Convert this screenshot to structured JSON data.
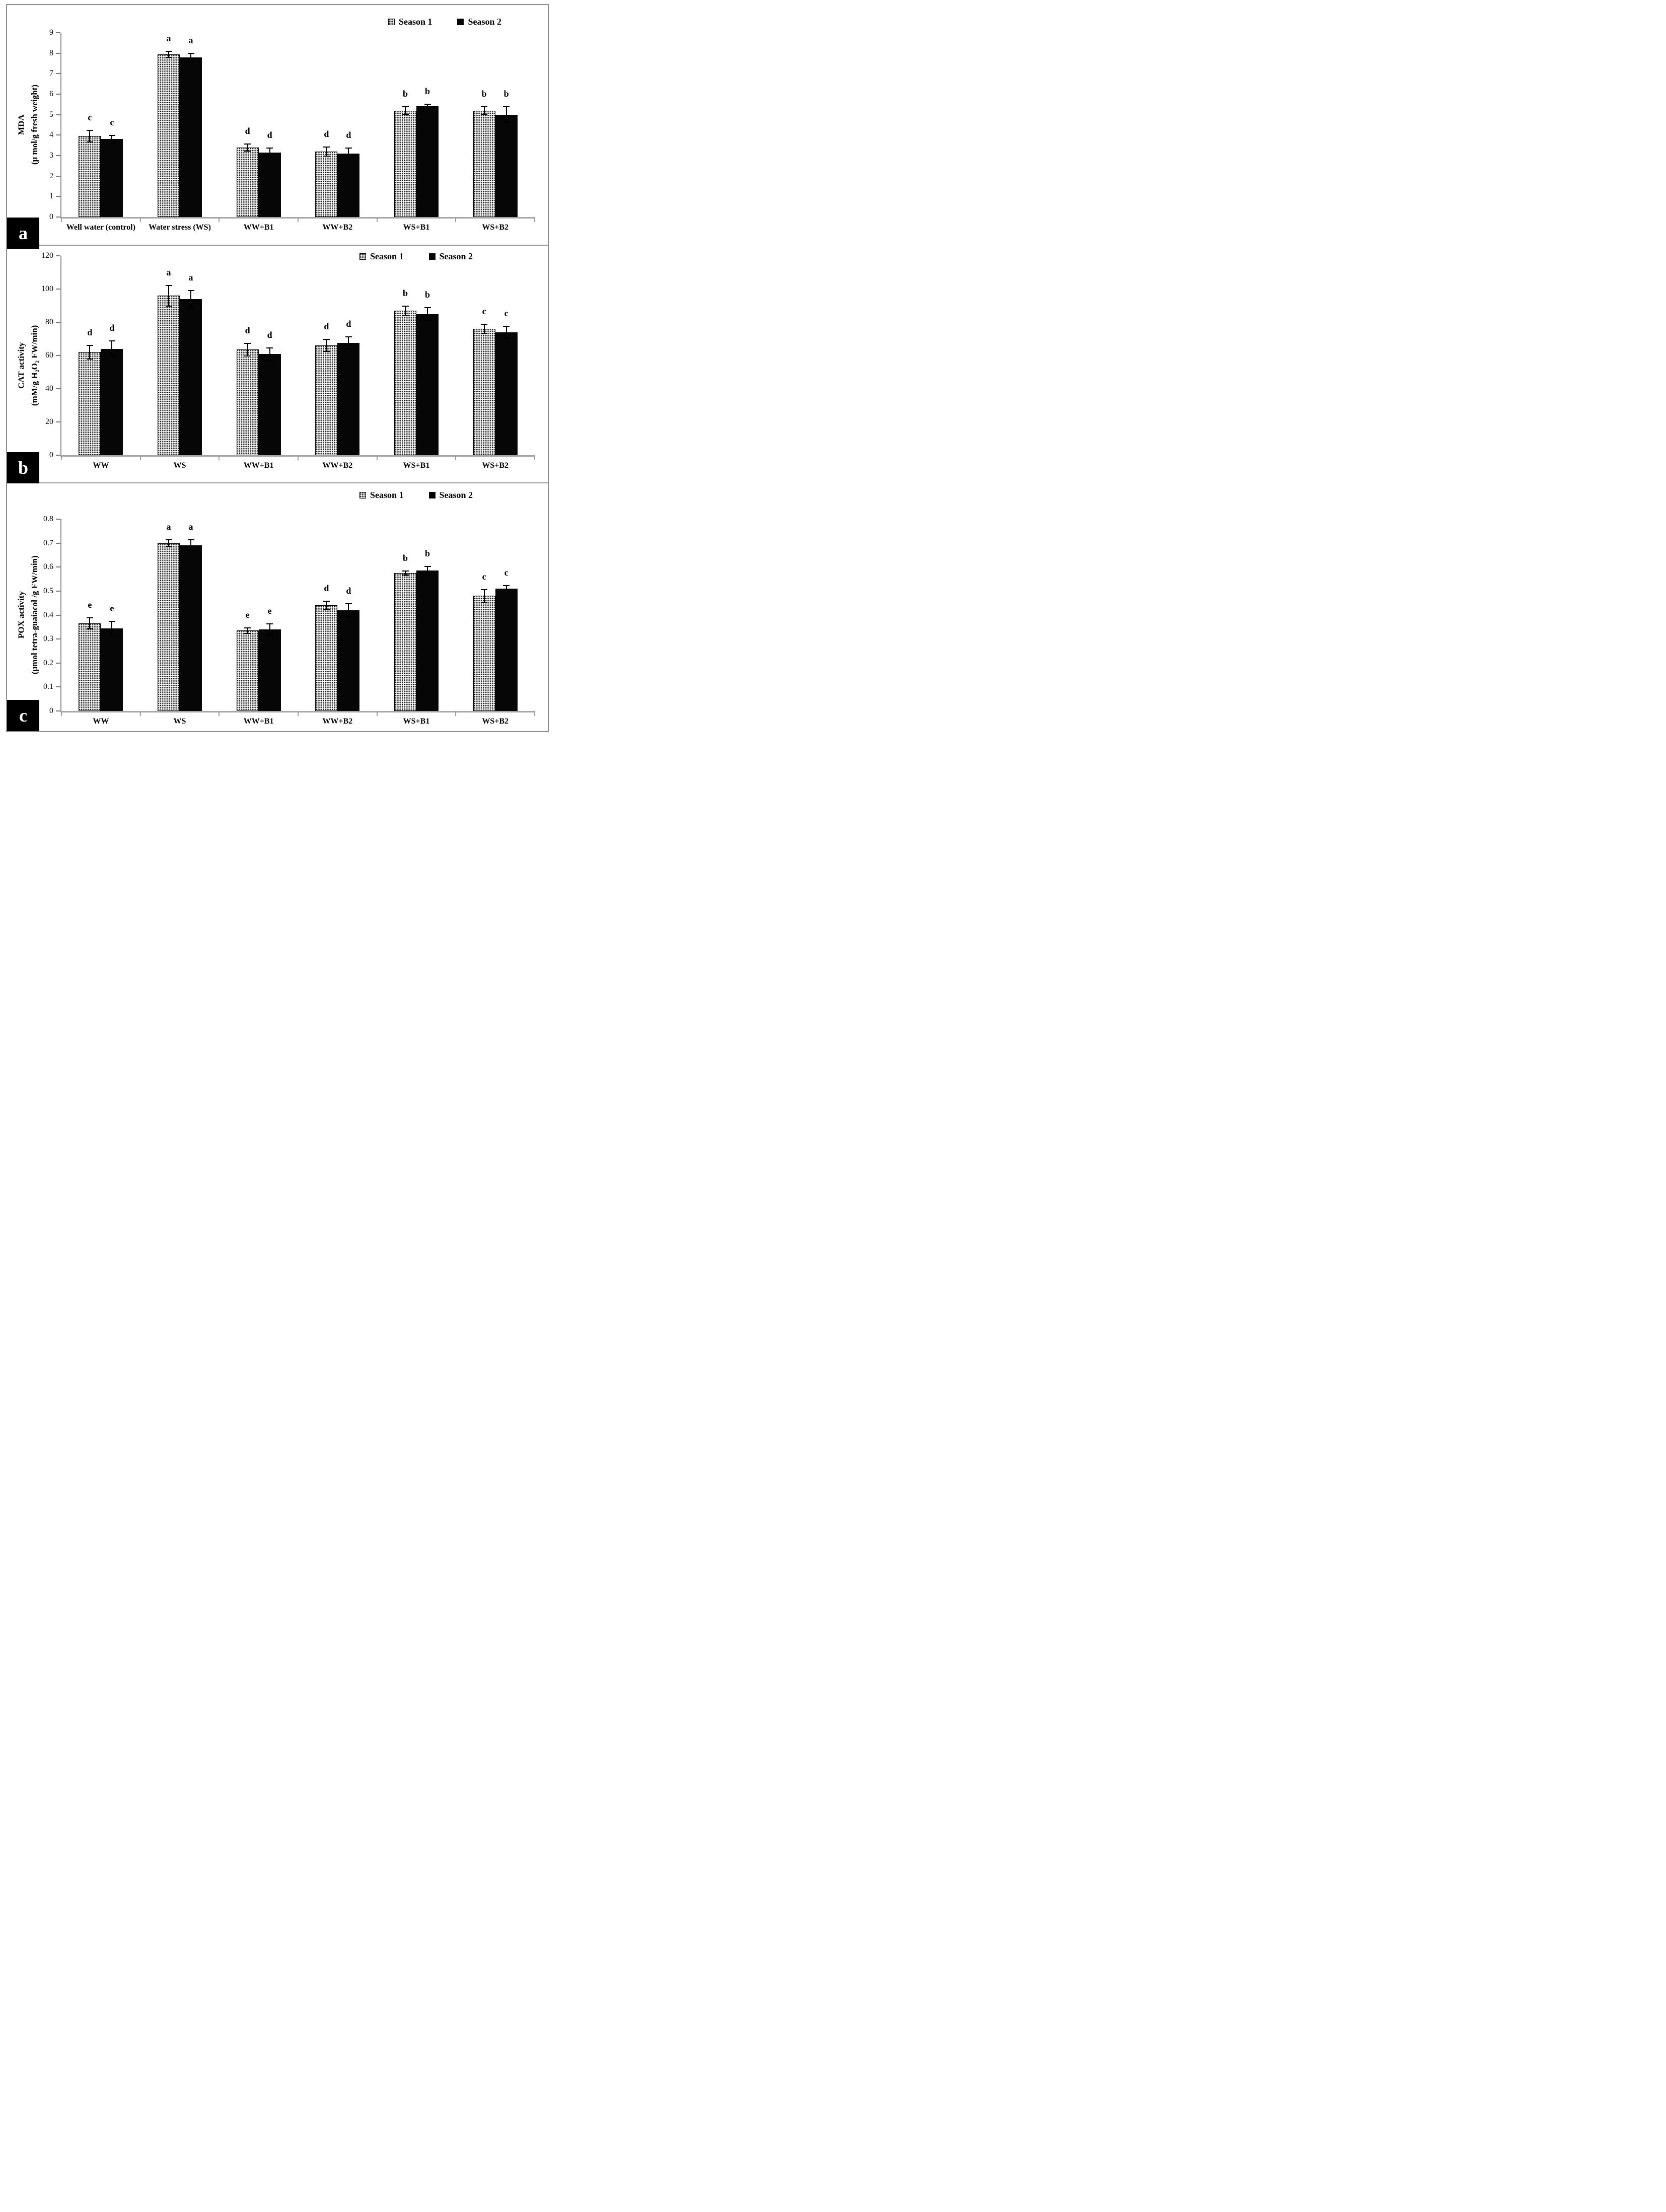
{
  "legend": {
    "season1": "Season 1",
    "season2": "Season 2"
  },
  "chart_data": [
    {
      "type": "bar",
      "panel_label": "a",
      "ylabel_lines": [
        "MDA",
        "(μ mol/g fresh weight)"
      ],
      "ylim": [
        0,
        9
      ],
      "ymax": 9,
      "yticks": [
        "0",
        "1",
        "2",
        "3",
        "4",
        "5",
        "6",
        "7",
        "8",
        "9"
      ],
      "grid": false,
      "legend_position": "top-right-inside",
      "categories": [
        "Well water (control)",
        "Water stress (WS)",
        "WW+B1",
        "WW+B2",
        "WS+B1",
        "WS+B2"
      ],
      "series": [
        {
          "name": "Season 1",
          "values": [
            3.95,
            7.95,
            3.4,
            3.2,
            5.2,
            5.2
          ],
          "errors": [
            0.3,
            0.17,
            0.2,
            0.25,
            0.2,
            0.2
          ]
        },
        {
          "name": "Season 2",
          "values": [
            3.8,
            7.8,
            3.15,
            3.1,
            5.4,
            5.0
          ],
          "errors": [
            0.2,
            0.22,
            0.25,
            0.3,
            0.13,
            0.4
          ]
        }
      ],
      "sig_letters": [
        "c",
        "a",
        "d",
        "d",
        "b",
        "b"
      ]
    },
    {
      "type": "bar",
      "panel_label": "b",
      "ylabel_lines": [
        "CAT activity",
        "(mM/g H₂O₂ FW/min)"
      ],
      "ylim": [
        0,
        120
      ],
      "ymax": 120,
      "yticks": [
        "0",
        "20",
        "40",
        "60",
        "80",
        "100",
        "120"
      ],
      "grid": false,
      "legend_position": "top-center-inside",
      "categories": [
        "WW",
        "WS",
        "WW+B1",
        "WW+B2",
        "WS+B1",
        "WS+B2"
      ],
      "series": [
        {
          "name": "Season 1",
          "values": [
            62,
            96,
            63.5,
            66,
            87,
            76
          ],
          "errors": [
            4.5,
            6.5,
            4.2,
            4,
            3,
            3
          ]
        },
        {
          "name": "Season 2",
          "values": [
            64,
            94,
            61,
            67.5,
            85,
            74
          ],
          "errors": [
            5,
            5.5,
            4,
            4,
            4,
            4
          ]
        }
      ],
      "sig_letters": [
        "d",
        "a",
        "d",
        "d",
        "b",
        "c"
      ]
    },
    {
      "type": "bar",
      "panel_label": "c",
      "ylabel_lines": [
        "POX activity",
        "(μmol tetra-guaiacol /g FW/min)"
      ],
      "ylim": [
        0,
        0.8
      ],
      "ymax": 0.8,
      "yticks": [
        "0",
        "0.1",
        "0.2",
        "0.3",
        "0.4",
        "0.5",
        "0.6",
        "0.7",
        "0.8"
      ],
      "grid": false,
      "legend_position": "top-center-inside",
      "categories": [
        "WW",
        "WS",
        "WW+B1",
        "WW+B2",
        "WS+B1",
        "WS+B2"
      ],
      "series": [
        {
          "name": "Season 1",
          "values": [
            0.365,
            0.7,
            0.335,
            0.44,
            0.575,
            0.48
          ],
          "errors": [
            0.025,
            0.015,
            0.013,
            0.02,
            0.01,
            0.028
          ]
        },
        {
          "name": "Season 2",
          "values": [
            0.345,
            0.69,
            0.34,
            0.42,
            0.585,
            0.51
          ],
          "errors": [
            0.03,
            0.025,
            0.025,
            0.03,
            0.02,
            0.015
          ]
        }
      ],
      "sig_letters": [
        "e",
        "a",
        "e",
        "d",
        "b",
        "c"
      ]
    }
  ]
}
